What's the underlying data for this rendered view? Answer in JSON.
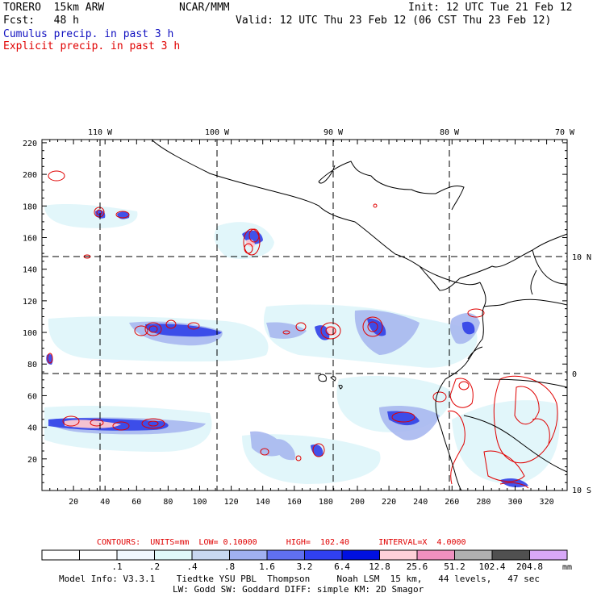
{
  "header": {
    "model": "TORERO  15km ARW",
    "org": "NCAR/MMM",
    "init": "Init: 12 UTC Tue 21 Feb 12",
    "fcst": "Fcst:   48 h",
    "valid": "Valid: 12 UTC Thu 23 Feb 12 (06 CST Thu 23 Feb 12)",
    "line1": "Cumulus precip. in past 3 h",
    "line2": "Explicit precip. in past 3 h"
  },
  "map": {
    "lon_labels": [
      "110 W",
      "100 W",
      "90 W",
      "80 W",
      "70 W"
    ],
    "lat_labels": [
      "10 N",
      "0",
      "10 S"
    ],
    "x_ticks": [
      "20",
      "40",
      "60",
      "80",
      "100",
      "120",
      "140",
      "160",
      "180",
      "200",
      "220",
      "240",
      "260",
      "280",
      "300",
      "320"
    ],
    "y_ticks": [
      "20",
      "40",
      "60",
      "80",
      "100",
      "120",
      "140",
      "160",
      "180",
      "200",
      "220"
    ],
    "colors": {
      "land_line": "#000000",
      "grid": "#000000",
      "explicit": "#e00000"
    }
  },
  "contour_caption": "CONTOURS:  UNITS=mm  LOW= 0.10000      HIGH=  102.40      INTERVAL=X  4.0000",
  "colorbar": {
    "labels": [
      ".1",
      ".2",
      ".4",
      ".8",
      "1.6",
      "3.2",
      "6.4",
      "12.8",
      "25.6",
      "51.2",
      "102.4",
      "204.8"
    ],
    "unit": "mm",
    "colors": [
      "#ffffff",
      "#ffffff",
      "#f0f8ff",
      "#e0fafa",
      "#c8d8f0",
      "#a0b0f0",
      "#6070f0",
      "#3040f0",
      "#0010e0",
      "#ffd0d8",
      "#f090c0",
      "#b0b0b0",
      "#505050",
      "#d8a8f8"
    ]
  },
  "footer": {
    "line1": "Model Info: V3.3.1    Tiedtke YSU PBL  Thompson     Noah LSM  15 km,   44 levels,   47 sec",
    "line2": "LW: Godd SW: Goddard DIFF: simple KM: 2D Smagor"
  }
}
